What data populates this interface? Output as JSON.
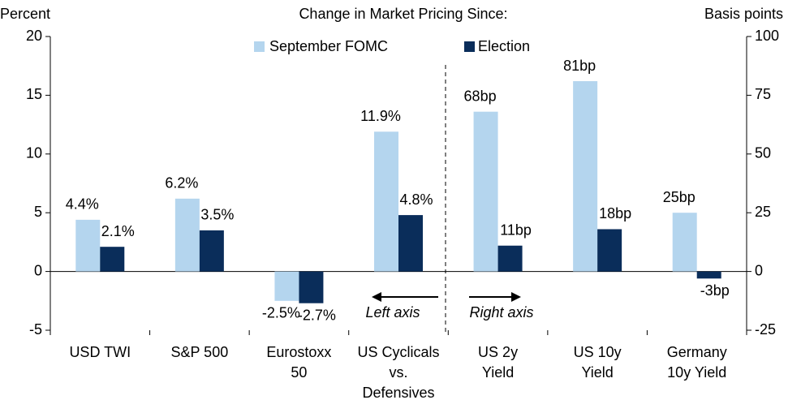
{
  "chart_data": {
    "type": "bar",
    "title": "Change in Market Pricing Since:",
    "y_label": "Percent",
    "y2_label": "Basis points",
    "categories": [
      [
        "USD TWI"
      ],
      [
        "S&P 500"
      ],
      [
        "Eurostoxx",
        "50"
      ],
      [
        "US Cyclicals",
        "vs.",
        "Defensives"
      ],
      [
        "US 2y",
        "Yield"
      ],
      [
        "US 10y",
        "Yield"
      ],
      [
        "Germany",
        "10y Yield"
      ]
    ],
    "category_axis": [
      "y",
      "y",
      "y",
      "y",
      "y2",
      "y2",
      "y2"
    ],
    "series": [
      {
        "name": "September FOMC",
        "color": "#b4d5ee",
        "values": [
          4.4,
          6.2,
          -2.5,
          11.9,
          68,
          81,
          25
        ],
        "value_labels": [
          "4.4%",
          "6.2%",
          "-2.5%",
          "11.9%",
          "68bp",
          "81bp",
          "25bp"
        ]
      },
      {
        "name": "Election",
        "color": "#0a2d5a",
        "values": [
          2.1,
          3.5,
          -2.7,
          4.8,
          11,
          18,
          -3
        ],
        "value_labels": [
          "2.1%",
          "3.5%",
          "-2.7%",
          "4.8%",
          "11bp",
          "18bp",
          "-3bp"
        ]
      }
    ],
    "ylim": [
      -5,
      20
    ],
    "yticks": [
      -5,
      0,
      5,
      10,
      15,
      20
    ],
    "y2lim": [
      -25,
      100
    ],
    "y2ticks": [
      -25,
      0,
      25,
      50,
      75,
      100
    ],
    "annotations": [
      "Left axis",
      "Right axis"
    ]
  }
}
